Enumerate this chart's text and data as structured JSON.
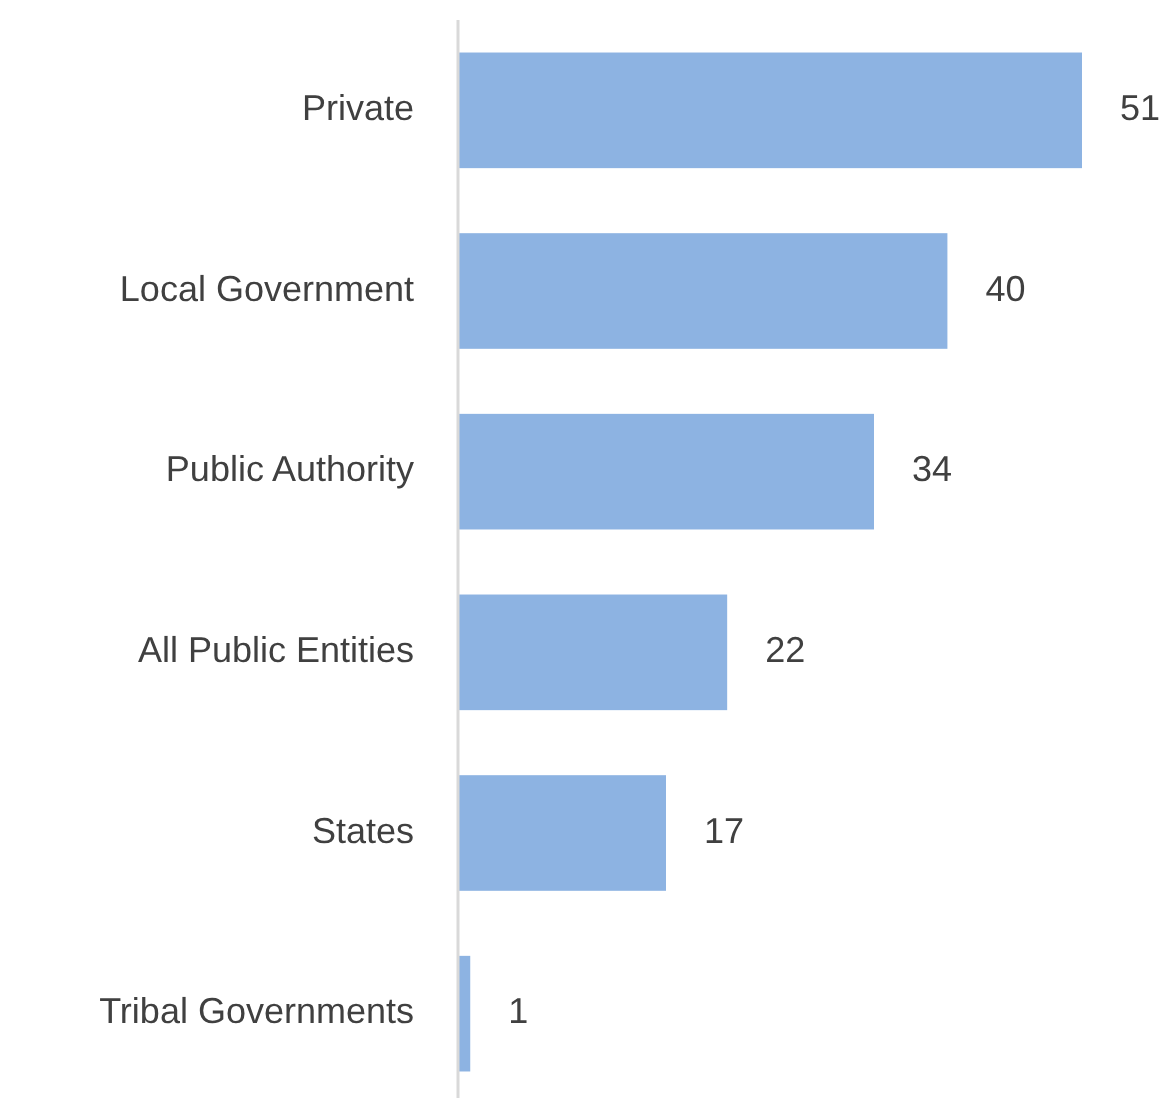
{
  "chart_data": {
    "type": "bar",
    "orientation": "horizontal",
    "categories": [
      "Private",
      "Local Government",
      "Public Authority",
      "All Public Entities",
      "States",
      "Tribal Governments"
    ],
    "values": [
      51,
      40,
      34,
      22,
      17,
      1
    ],
    "color": "#8db3e2",
    "data_labels": true
  }
}
